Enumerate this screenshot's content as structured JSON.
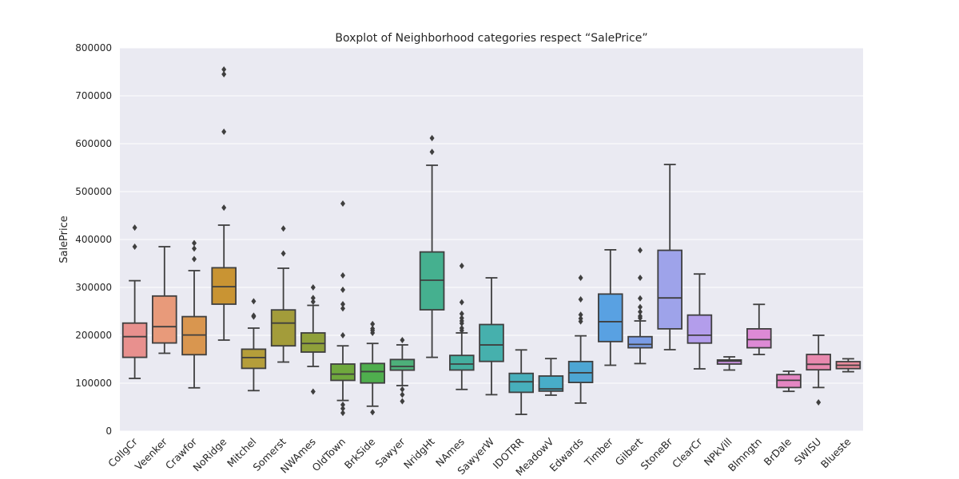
{
  "chart_data": {
    "type": "boxplot",
    "title": "Boxplot of Neighborhood categories respect “SalePrice”",
    "xlabel": "",
    "ylabel": "SalePrice",
    "ylim": [
      0,
      800000
    ],
    "yticks": [
      0,
      100000,
      200000,
      300000,
      400000,
      500000,
      600000,
      700000,
      800000
    ],
    "ytick_labels": [
      "0",
      "100000",
      "200000",
      "300000",
      "400000",
      "500000",
      "600000",
      "700000",
      "800000"
    ],
    "grid": true,
    "categories": [
      "CollgCr",
      "Veenker",
      "Crawfor",
      "NoRidge",
      "Mitchel",
      "Somerst",
      "NWAmes",
      "OldTown",
      "BrkSide",
      "Sawyer",
      "NridgHt",
      "NAmes",
      "SawyerW",
      "IDOTRR",
      "MeadowV",
      "Edwards",
      "Timber",
      "Gilbert",
      "StoneBr",
      "ClearCr",
      "NPkVill",
      "Blmngtn",
      "BrDale",
      "SWISU",
      "Blueste"
    ],
    "colors": [
      "#e8908e",
      "#e89a7a",
      "#d9964f",
      "#c99433",
      "#b59e3a",
      "#a39c3a",
      "#8fa03a",
      "#6fa83d",
      "#4fae4e",
      "#4db07a",
      "#45b08f",
      "#44af9f",
      "#46b0ad",
      "#47afbb",
      "#48adc8",
      "#4da6d3",
      "#59a1e2",
      "#7a9ce5",
      "#9ea3ea",
      "#b39deb",
      "#cc93e3",
      "#dd8ad5",
      "#e486c2",
      "#e889ae",
      "#e88c9c"
    ],
    "boxes": [
      {
        "q1": 154000,
        "median": 197200,
        "q3": 225500,
        "whislo": 110000,
        "whishi": 314000,
        "fliers": [
          385000,
          424870
        ]
      },
      {
        "q1": 184000,
        "median": 218000,
        "q3": 282000,
        "whislo": 162500,
        "whishi": 385000,
        "fliers": []
      },
      {
        "q1": 159500,
        "median": 200624,
        "q3": 239000,
        "whislo": 90350,
        "whishi": 335000,
        "fliers": [
          359100,
          381000,
          392500
        ]
      },
      {
        "q1": 265000,
        "median": 301500,
        "q3": 341000,
        "whislo": 190000,
        "whishi": 430000,
        "fliers": [
          466500,
          625000,
          745000,
          755000
        ]
      },
      {
        "q1": 131000,
        "median": 153500,
        "q3": 171000,
        "whislo": 84500,
        "whishi": 215000,
        "fliers": [
          239000,
          241000,
          271000
        ]
      },
      {
        "q1": 177975,
        "median": 225500,
        "q3": 253000,
        "whislo": 144152,
        "whishi": 340000,
        "fliers": [
          370878,
          423000
        ]
      },
      {
        "q1": 165000,
        "median": 182900,
        "q3": 205000,
        "whislo": 135000,
        "whishi": 262500,
        "fliers": [
          82500,
          270000,
          278000,
          300000
        ]
      },
      {
        "q1": 105900,
        "median": 119000,
        "q3": 140000,
        "whislo": 64000,
        "whishi": 178000,
        "fliers": [
          37900,
          47000,
          55000,
          200000,
          256000,
          265000,
          295000,
          325000,
          475000
        ]
      },
      {
        "q1": 100500,
        "median": 124300,
        "q3": 141175,
        "whislo": 52000,
        "whishi": 183000,
        "fliers": [
          39300,
          205000,
          210000,
          214000,
          223500
        ]
      },
      {
        "q1": 127250,
        "median": 135000,
        "q3": 149462,
        "whislo": 95000,
        "whishi": 180000,
        "fliers": [
          62383,
          76000,
          87000,
          190000
        ]
      },
      {
        "q1": 253293,
        "median": 315000,
        "q3": 374000,
        "whislo": 154000,
        "whishi": 555000,
        "fliers": [
          582933,
          611657
        ]
      },
      {
        "q1": 127500,
        "median": 140000,
        "q3": 158000,
        "whislo": 87000,
        "whishi": 205000,
        "fliers": [
          210000,
          215000,
          225000,
          230000,
          236000,
          245000,
          269000,
          345000
        ]
      },
      {
        "q1": 145500,
        "median": 179900,
        "q3": 222500,
        "whislo": 76000,
        "whishi": 320000,
        "fliers": []
      },
      {
        "q1": 81000,
        "median": 103000,
        "q3": 120500,
        "whislo": 34900,
        "whishi": 169500,
        "fliers": []
      },
      {
        "q1": 83500,
        "median": 88000,
        "q3": 115000,
        "whislo": 75000,
        "whishi": 151400,
        "fliers": []
      },
      {
        "q1": 101500,
        "median": 121750,
        "q3": 145225,
        "whislo": 58500,
        "whishi": 198900,
        "fliers": [
          228950,
          235000,
          243000,
          274970,
          320000
        ]
      },
      {
        "q1": 186900,
        "median": 228475,
        "q3": 286115,
        "whislo": 137500,
        "whishi": 378500,
        "fliers": []
      },
      {
        "q1": 174000,
        "median": 181000,
        "q3": 197200,
        "whislo": 141000,
        "whishi": 230000,
        "fliers": [
          236000,
          240000,
          249000,
          259000,
          277000,
          320000,
          377500
        ]
      },
      {
        "q1": 213500,
        "median": 278000,
        "q3": 377426,
        "whislo": 170000,
        "whishi": 556581,
        "fliers": []
      },
      {
        "q1": 183750,
        "median": 200250,
        "q3": 242225,
        "whislo": 130000,
        "whishi": 328000,
        "fliers": []
      },
      {
        "q1": 140000,
        "median": 146000,
        "q3": 148500,
        "whislo": 127500,
        "whishi": 155000,
        "fliers": []
      },
      {
        "q1": 174000,
        "median": 191000,
        "q3": 213490,
        "whislo": 159895,
        "whishi": 264561,
        "fliers": []
      },
      {
        "q1": 91000,
        "median": 106000,
        "q3": 118000,
        "whislo": 83000,
        "whishi": 125000,
        "fliers": []
      },
      {
        "q1": 128000,
        "median": 139500,
        "q3": 160000,
        "whislo": 91000,
        "whishi": 200000,
        "fliers": [
          60000
        ]
      },
      {
        "q1": 130500,
        "median": 137500,
        "q3": 145000,
        "whislo": 124000,
        "whishi": 151000,
        "fliers": []
      }
    ]
  }
}
